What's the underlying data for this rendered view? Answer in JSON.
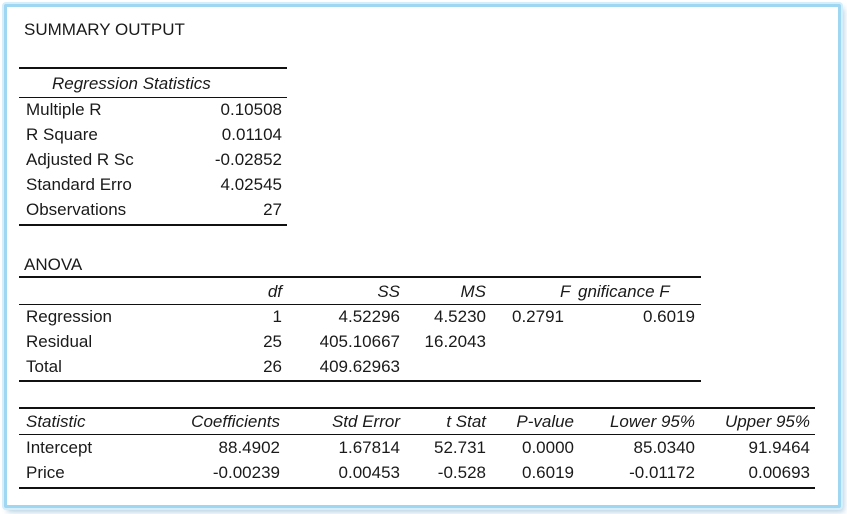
{
  "title": "SUMMARY OUTPUT",
  "regression_statistics": {
    "heading": "Regression Statistics",
    "rows": [
      {
        "label": "Multiple R",
        "value": "0.10508"
      },
      {
        "label": "R Square",
        "value": "0.01104"
      },
      {
        "label": "Adjusted R Sc",
        "value": "-0.02852"
      },
      {
        "label": "Standard Erro",
        "value": "4.02545"
      },
      {
        "label": "Observations",
        "value": "27"
      }
    ]
  },
  "anova": {
    "heading": "ANOVA",
    "columns": [
      "df",
      "SS",
      "MS",
      "F",
      "gnificance F"
    ],
    "rows": [
      {
        "label": "Regression",
        "df": "1",
        "ss": "4.52296",
        "ms": "4.5230",
        "f": "0.2791",
        "sig": "0.6019"
      },
      {
        "label": "Residual",
        "df": "25",
        "ss": "405.10667",
        "ms": "16.2043",
        "f": "",
        "sig": ""
      },
      {
        "label": "Total",
        "df": "26",
        "ss": "409.62963",
        "ms": "",
        "f": "",
        "sig": ""
      }
    ]
  },
  "coefficients": {
    "columns": [
      "Statistic",
      "Coefficients",
      "Std Error",
      "t Stat",
      "P-value",
      "Lower 95%",
      "Upper 95%"
    ],
    "rows": [
      {
        "label": "Intercept",
        "coef": "88.4902",
        "se": "1.67814",
        "t": "52.731",
        "p": "0.0000",
        "lower": "85.0340",
        "upper": "91.9464"
      },
      {
        "label": "Price",
        "coef": "-0.00239",
        "se": "0.00453",
        "t": "-0.528",
        "p": "0.6019",
        "lower": "-0.01172",
        "upper": "0.00693"
      }
    ]
  },
  "colors": {
    "frame": "#9fd7f3",
    "text": "#1a1a1a"
  }
}
